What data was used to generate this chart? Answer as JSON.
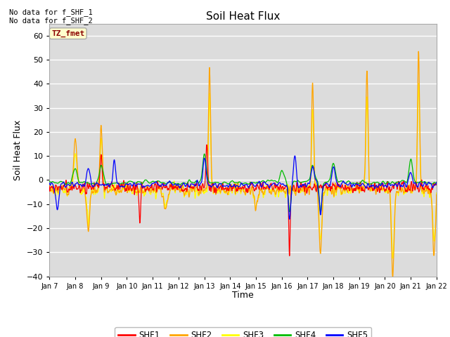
{
  "title": "Soil Heat Flux",
  "xlabel": "Time",
  "ylabel": "Soil Heat Flux",
  "ylim": [
    -40,
    65
  ],
  "yticks": [
    -40,
    -30,
    -20,
    -10,
    0,
    10,
    20,
    30,
    40,
    50,
    60
  ],
  "bg_color": "#dcdcdc",
  "annotation_text": "No data for f_SHF_1\nNo data for f_SHF_2",
  "legend_box_text": "TZ_fmet",
  "legend_box_color": "#ffffcc",
  "legend_box_text_color": "#8b0000",
  "line_colors": {
    "SHF1": "#ff0000",
    "SHF2": "#ffa500",
    "SHF3": "#ffff00",
    "SHF4": "#00bb00",
    "SHF5": "#0000ff"
  },
  "xticklabels": [
    "Jan 7",
    "Jan 8",
    "Jan 9",
    "Jan 10",
    "Jan 11",
    "Jan 12",
    "Jan 13",
    "Jan 14",
    "Jan 15",
    "Jan 16",
    "Jan 17",
    "Jan 18",
    "Jan 19",
    "Jan 20",
    "Jan 21",
    "Jan 22"
  ],
  "n_points": 3000
}
